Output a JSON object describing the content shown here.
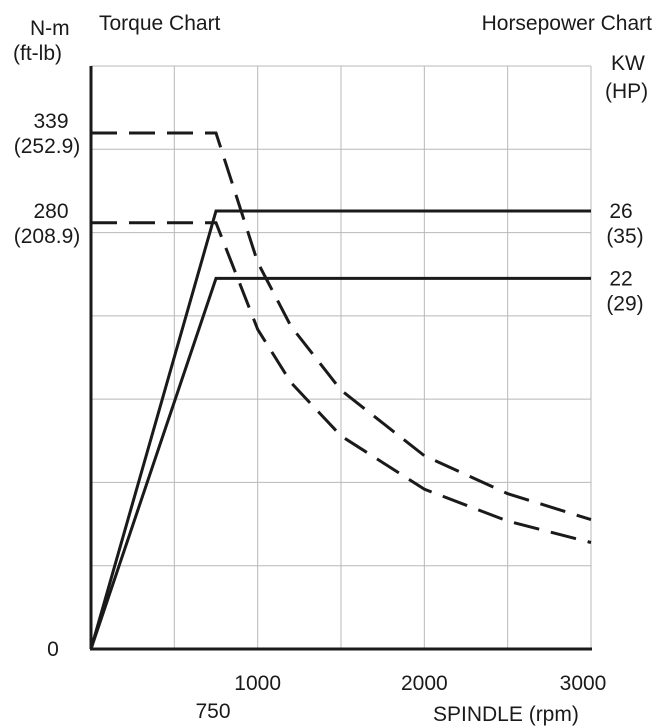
{
  "chart_data": {
    "type": "line",
    "torque_title": "Torque Chart",
    "power_title": "Horsepower Chart",
    "left_unit_primary": "N-m",
    "left_unit_secondary": "(ft-lb)",
    "right_unit_primary": "KW",
    "right_unit_secondary": "(HP)",
    "xlabel": "SPINDLE (rpm)",
    "xlim": [
      0,
      3000
    ],
    "x_ticks": [
      {
        "value": 1000,
        "label": "1000"
      },
      {
        "value": 2000,
        "label": "2000"
      },
      {
        "value": 3000,
        "label": "3000"
      },
      {
        "value": 750,
        "label": "750"
      }
    ],
    "torque_ylim": [
      0,
      400
    ],
    "torque_ticks": [
      {
        "value": 339,
        "label": "339",
        "sub": "(252.9)"
      },
      {
        "value": 280,
        "label": "280",
        "sub": "(208.9)"
      },
      {
        "value": 0,
        "label": "0",
        "sub": ""
      }
    ],
    "power_ticks": [
      {
        "value": 26,
        "label": "26",
        "sub": "(35)"
      },
      {
        "value": 22,
        "label": "22",
        "sub": "(29)"
      }
    ],
    "series": [
      {
        "axis": "torque",
        "style": "dashed",
        "x": [
          0,
          750,
          1000,
          1200,
          1500,
          2000,
          2500,
          3000
        ],
        "y": [
          339,
          339,
          254,
          212,
          170,
          127,
          102,
          85
        ]
      },
      {
        "axis": "torque",
        "style": "dashed",
        "x": [
          0,
          750,
          1000,
          1200,
          1500,
          2000,
          2500,
          3000
        ],
        "y": [
          280,
          280,
          210,
          175,
          140,
          105,
          84,
          70
        ]
      },
      {
        "axis": "power",
        "style": "solid",
        "x": [
          0,
          750,
          3000
        ],
        "y": [
          0,
          26,
          26
        ]
      },
      {
        "axis": "power",
        "style": "solid",
        "x": [
          0,
          750,
          3000
        ],
        "y": [
          0,
          22,
          22
        ]
      }
    ],
    "grid": true
  }
}
